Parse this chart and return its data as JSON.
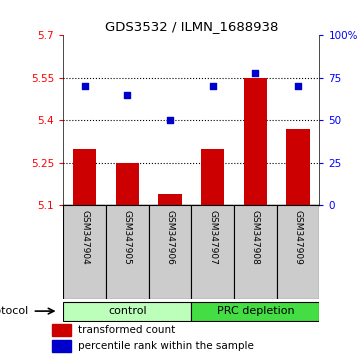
{
  "title": "GDS3532 / ILMN_1688938",
  "samples": [
    "GSM347904",
    "GSM347905",
    "GSM347906",
    "GSM347907",
    "GSM347908",
    "GSM347909"
  ],
  "bar_values": [
    5.3,
    5.25,
    5.14,
    5.3,
    5.55,
    5.37
  ],
  "bar_baseline": 5.1,
  "percentile_values": [
    70,
    65,
    50,
    70,
    78,
    70
  ],
  "left_ylim": [
    5.1,
    5.7
  ],
  "left_yticks": [
    5.1,
    5.25,
    5.4,
    5.55,
    5.7
  ],
  "right_ylim": [
    0,
    100
  ],
  "right_yticks": [
    0,
    25,
    50,
    75,
    100
  ],
  "right_yticklabels": [
    "0",
    "25",
    "50",
    "75",
    "100%"
  ],
  "bar_color": "#cc0000",
  "dot_color": "#0000cc",
  "groups": [
    {
      "label": "control",
      "indices": [
        0,
        1,
        2
      ],
      "color": "#bbffbb"
    },
    {
      "label": "PRC depletion",
      "indices": [
        3,
        4,
        5
      ],
      "color": "#44dd44"
    }
  ],
  "group_row_label": "protocol",
  "legend_bar_label": "transformed count",
  "legend_dot_label": "percentile rank within the sample",
  "bg_color": "#ffffff",
  "tick_bg_color": "#cccccc"
}
